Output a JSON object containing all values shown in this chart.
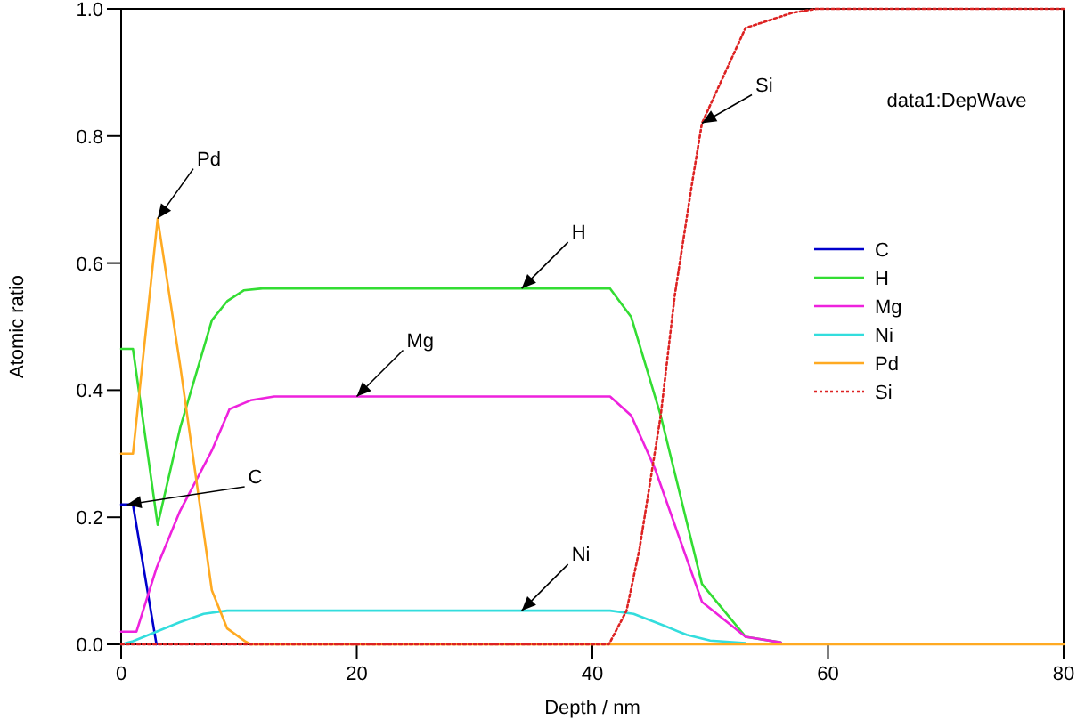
{
  "chart_data": {
    "type": "line",
    "xlabel": "Depth / nm",
    "ylabel": "Atomic ratio",
    "xlim": [
      0,
      80
    ],
    "xticks": [
      0,
      20,
      40,
      60,
      80
    ],
    "ylim": [
      0,
      1
    ],
    "yticks": [
      {
        "value": 0,
        "label": "0.0"
      },
      {
        "value": 0.2,
        "label": "0.2"
      },
      {
        "value": 0.4,
        "label": "0.4"
      },
      {
        "value": 0.6,
        "label": "0.6"
      },
      {
        "value": 0.8,
        "label": "0.8"
      },
      {
        "value": 1,
        "label": "1.0"
      }
    ],
    "grid": false,
    "legend": "top right",
    "marker": "none",
    "series": [
      {
        "name": "C",
        "color": "#0000cc",
        "x": [
          0,
          1,
          3
        ],
        "values": [
          0.22,
          0.22,
          0
        ]
      },
      {
        "name": "H",
        "color": "#33dd33",
        "x": [
          0,
          1,
          3.1,
          5,
          7.7,
          9,
          10.4,
          12,
          41.5,
          43.3,
          45.8,
          49.3,
          53,
          56
        ],
        "values": [
          0.465,
          0.465,
          0.188,
          0.34,
          0.51,
          0.54,
          0.557,
          0.56,
          0.56,
          0.515,
          0.36,
          0.095,
          0.012,
          0.003
        ]
      },
      {
        "name": "Mg",
        "color": "#ee22dd",
        "x": [
          0,
          1.3,
          3,
          5,
          7.7,
          9.2,
          11,
          13,
          41.5,
          43.3,
          45.3,
          49.3,
          53,
          56
        ],
        "values": [
          0.02,
          0.02,
          0.12,
          0.21,
          0.305,
          0.37,
          0.384,
          0.39,
          0.39,
          0.36,
          0.277,
          0.067,
          0.012,
          0.003
        ]
      },
      {
        "name": "Ni",
        "color": "#33dddd",
        "x": [
          0,
          1,
          3,
          5,
          7,
          9,
          41.5,
          43.5,
          46,
          48,
          50,
          53
        ],
        "values": [
          0,
          0.005,
          0.02,
          0.035,
          0.048,
          0.053,
          0.053,
          0.048,
          0.03,
          0.015,
          0.006,
          0.002
        ]
      },
      {
        "name": "Pd",
        "color": "#ffaa22",
        "x": [
          0,
          1,
          3.1,
          5,
          7.7,
          9,
          10.5,
          11,
          80
        ],
        "values": [
          0.3,
          0.3,
          0.67,
          0.44,
          0.085,
          0.025,
          0.005,
          0,
          0
        ]
      },
      {
        "name": "Si",
        "color": "#dd2222",
        "line_style": "dotted",
        "x": [
          0,
          41.4,
          42.9,
          44,
          45.8,
          47,
          48.5,
          49.3,
          53,
          57,
          59,
          80
        ],
        "values": [
          0,
          0,
          0.053,
          0.15,
          0.36,
          0.55,
          0.73,
          0.82,
          0.97,
          0.994,
          1,
          1
        ]
      }
    ],
    "annotations": [
      {
        "text": "Pd",
        "x": 3.1,
        "y": 0.67
      },
      {
        "text": "H",
        "x": 34,
        "y": 0.56
      },
      {
        "text": "Mg",
        "x": 20,
        "y": 0.39
      },
      {
        "text": "Ni",
        "x": 34,
        "y": 0.053
      },
      {
        "text": "C",
        "x": 0.5,
        "y": 0.22
      },
      {
        "text": "Si",
        "x": 49.3,
        "y": 0.82
      },
      "data1:DepWave"
    ]
  }
}
